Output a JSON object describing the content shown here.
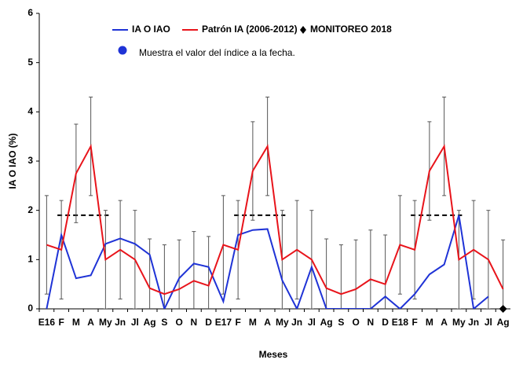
{
  "chart_data": {
    "type": "line",
    "y_label": "IA O IAO (%)",
    "x_label": "Meses",
    "annotation": "Muestra el valor del índice a la fecha.",
    "categories": [
      "E16",
      "F",
      "M",
      "A",
      "My",
      "Jn",
      "Jl",
      "Ag",
      "S",
      "O",
      "N",
      "D",
      "E17",
      "F",
      "M",
      "A",
      "My",
      "Jn",
      "Jl",
      "Ag",
      "S",
      "O",
      "N",
      "D",
      "E18",
      "F",
      "M",
      "A",
      "My",
      "Jn",
      "Jl",
      "Ag"
    ],
    "ylim": [
      0,
      6
    ],
    "yticks": [
      0,
      1,
      2,
      3,
      4,
      5,
      6
    ],
    "threshold": 1.9,
    "series": [
      {
        "name": "IA O IAO",
        "color": "#1f33d6",
        "values": [
          0,
          1.5,
          0.62,
          0.68,
          1.32,
          1.43,
          1.32,
          1.1,
          0,
          0.62,
          0.92,
          0.85,
          0.15,
          1.5,
          1.6,
          1.62,
          0.58,
          0,
          0.85,
          0,
          0,
          0,
          0,
          0.25,
          0,
          0.3,
          0.7,
          0.9,
          1.9,
          0,
          0.25,
          null
        ]
      },
      {
        "name": "Patrón IA (2006-2012)",
        "color": "#e8141b",
        "values": [
          1.3,
          1.2,
          2.75,
          3.3,
          1.0,
          1.2,
          1.0,
          0.42,
          0.3,
          0.4,
          0.57,
          0.47,
          1.3,
          1.2,
          2.8,
          3.3,
          1.0,
          1.2,
          1.0,
          0.42,
          0.3,
          0.4,
          0.6,
          0.5,
          1.3,
          1.2,
          2.8,
          3.3,
          1.0,
          1.2,
          1.0,
          0.4
        ],
        "errors": [
          1,
          1,
          1,
          1,
          1,
          1,
          1,
          1,
          1,
          1,
          1,
          1,
          1,
          1,
          1,
          1,
          1,
          1,
          1,
          1,
          1,
          1,
          1,
          1,
          1,
          1,
          1,
          1,
          1,
          1,
          1,
          1
        ]
      },
      {
        "name": "MONITOREO 2018",
        "color": "#000000",
        "marker": "diamond",
        "values": [
          null,
          null,
          null,
          null,
          null,
          null,
          null,
          null,
          null,
          null,
          null,
          null,
          null,
          null,
          null,
          null,
          null,
          null,
          null,
          null,
          null,
          null,
          null,
          null,
          null,
          null,
          null,
          null,
          null,
          null,
          null,
          0
        ]
      }
    ]
  }
}
